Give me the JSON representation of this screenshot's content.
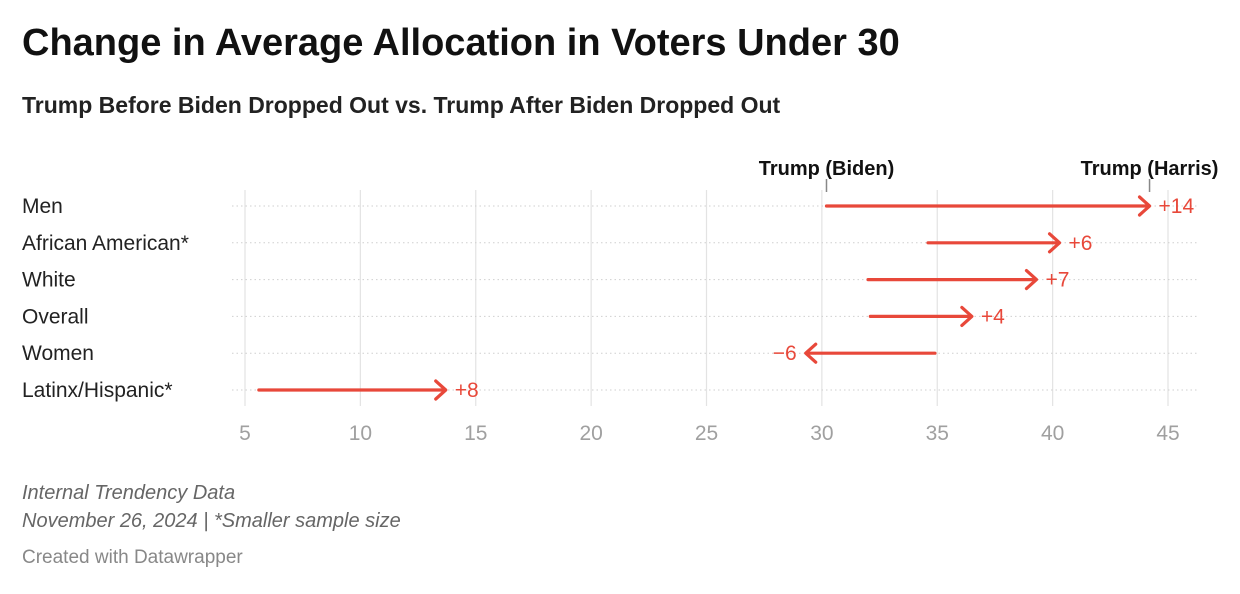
{
  "title": "Change in Average Allocation in Voters Under 30",
  "subtitle": "Trump Before Biden Dropped Out vs. Trump After Biden Dropped Out",
  "notes": {
    "source": "Internal Trendency Data",
    "date_note": "November 26, 2024 | *Smaller sample size"
  },
  "credit": "Created with Datawrapper",
  "colors": {
    "arrow": "#e8483a",
    "axis_text": "#a0a0a0",
    "grid": "#e3e3e3",
    "label": "#222222"
  },
  "chart_data": {
    "type": "arrow",
    "x": {
      "min": 5,
      "max": 45,
      "ticks": [
        5,
        10,
        15,
        20,
        25,
        30,
        35,
        40,
        45
      ]
    },
    "grid": true,
    "column_labels": [
      {
        "text": "Trump (Biden)",
        "at": 30.2
      },
      {
        "text": "Trump (Harris)",
        "at": 44.2
      }
    ],
    "rows": [
      {
        "label": "Men",
        "from": 30.2,
        "to": 44.2,
        "change": "+14"
      },
      {
        "label": "African American*",
        "from": 34.6,
        "to": 40.3,
        "change": "+6"
      },
      {
        "label": "White",
        "from": 32.0,
        "to": 39.3,
        "change": "+7"
      },
      {
        "label": "Overall",
        "from": 32.1,
        "to": 36.5,
        "change": "+4"
      },
      {
        "label": "Women",
        "from": 34.9,
        "to": 29.3,
        "change": "−6"
      },
      {
        "label": "Latinx/Hispanic*",
        "from": 5.6,
        "to": 13.7,
        "change": "+8"
      }
    ]
  }
}
